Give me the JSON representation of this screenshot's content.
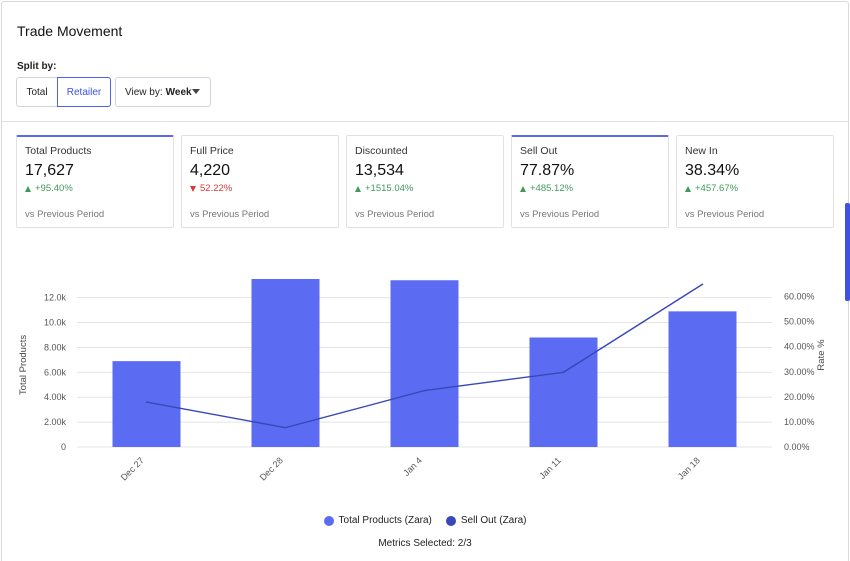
{
  "header": {
    "title": "Trade Movement",
    "split_label": "Split by:"
  },
  "controls": {
    "split_options": [
      "Total",
      "Retailer"
    ],
    "split_selected": "Retailer",
    "view_by_label": "View by:",
    "view_by_value": "Week"
  },
  "cards": [
    {
      "label": "Total Products",
      "value": "17,627",
      "change": "+95.40%",
      "direction": "up",
      "footer": "vs Previous Period",
      "active": true
    },
    {
      "label": "Full Price",
      "value": "4,220",
      "change": "52.22%",
      "direction": "down",
      "footer": "vs Previous Period",
      "active": false
    },
    {
      "label": "Discounted",
      "value": "13,534",
      "change": "+1515.04%",
      "direction": "up",
      "footer": "vs Previous Period",
      "active": false
    },
    {
      "label": "Sell Out",
      "value": "77.87%",
      "change": "+485.12%",
      "direction": "up",
      "footer": "vs Previous Period",
      "active": true
    },
    {
      "label": "New In",
      "value": "38.34%",
      "change": "+457.67%",
      "direction": "up",
      "footer": "vs Previous Period",
      "active": false
    }
  ],
  "colors": {
    "accent": "#3f52e3",
    "bar": "#5b6cf2",
    "line": "#3848b8",
    "up": "#3f9a5a",
    "down": "#d23a3a"
  },
  "chart_data": {
    "type": "bar",
    "categories": [
      "Dec 27",
      "Dec 28",
      "Jan 4",
      "Jan 11",
      "Jan 18"
    ],
    "series": [
      {
        "name": "Total Products (Zara)",
        "type": "bar",
        "axis": "left",
        "values": [
          6900,
          13500,
          13400,
          8800,
          10900
        ]
      },
      {
        "name": "Sell Out (Zara)",
        "type": "line",
        "axis": "right",
        "values": [
          17.9,
          7.7,
          22.5,
          29.8,
          64.9
        ]
      }
    ],
    "ylabel": "Total Products",
    "y2label": "Rate %",
    "ylim": [
      0,
      13500
    ],
    "y2lim": [
      0,
      67
    ],
    "yticks": [
      "0",
      "2.00k",
      "4.00k",
      "6.00k",
      "8.00k",
      "10.0k",
      "12.0k"
    ],
    "y2ticks": [
      "0.00%",
      "10.00%",
      "20.00%",
      "30.00%",
      "40.00%",
      "50.00%",
      "60.00%"
    ],
    "grid": true,
    "legend": "bottom-center"
  },
  "footer": {
    "metrics_selected": "Metrics Selected: 2/3"
  }
}
